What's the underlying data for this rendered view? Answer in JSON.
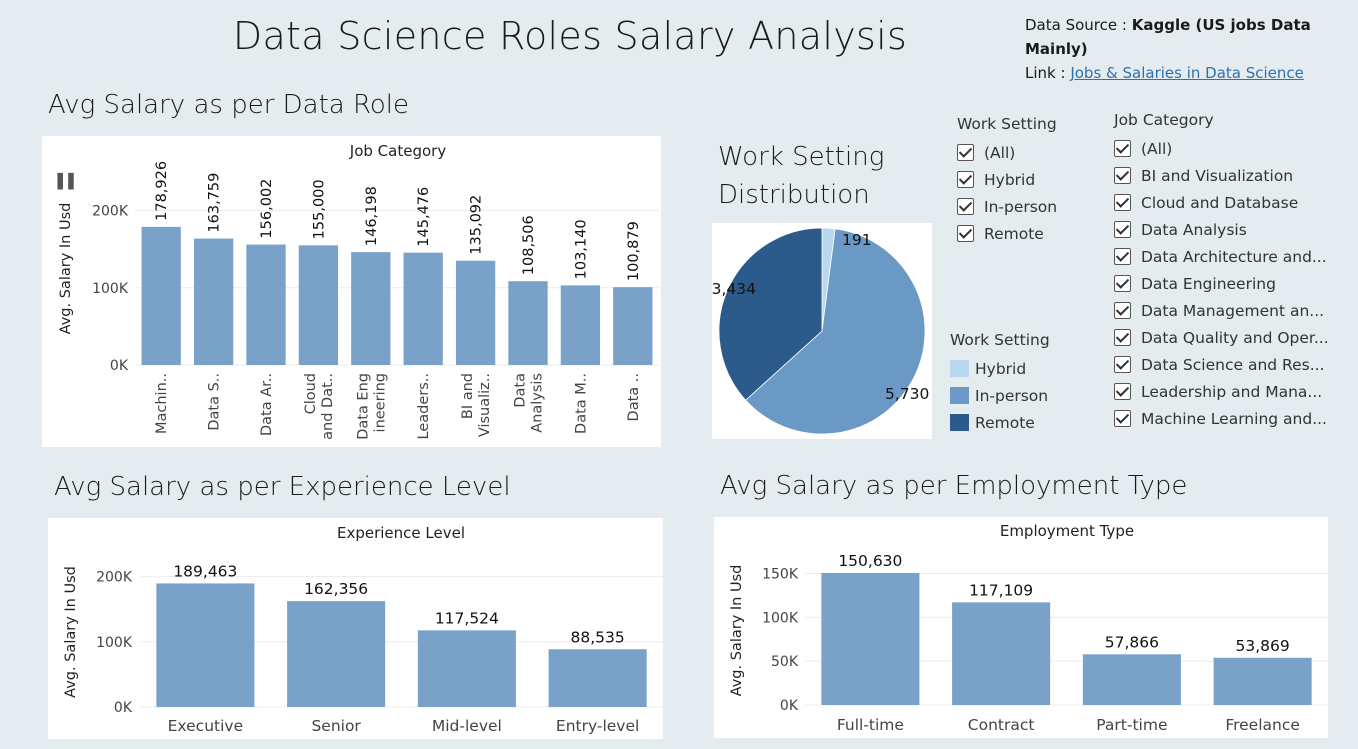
{
  "header": {
    "title": "Data Science Roles Salary Analysis",
    "source_label": "Data Source :",
    "source_value": "Kaggle  (US jobs Data Mainly)",
    "link_label": "Link :",
    "link_text": "Jobs & Salaries in Data Science"
  },
  "sections": {
    "role_title": "Avg Salary as per Data Role",
    "work_setting_title_line1": "Work Setting",
    "work_setting_title_line2": "Distribution",
    "experience_title": "Avg Salary as per Experience Level",
    "employment_title": "Avg Salary as per Employment Type"
  },
  "filters": {
    "work_setting": {
      "title": "Work Setting",
      "options": [
        "(All)",
        "Hybrid",
        "In-person",
        "Remote"
      ]
    },
    "job_category": {
      "title": "Job Category",
      "options": [
        "(All)",
        "BI and Visualization",
        "Cloud and Database",
        "Data Analysis",
        "Data Architecture and...",
        "Data Engineering",
        "Data Management an...",
        "Data Quality and Oper...",
        "Data Science and Res...",
        "Leadership and Mana...",
        "Machine Learning and..."
      ]
    }
  },
  "pie_legend": {
    "title": "Work Setting",
    "items": [
      "Hybrid",
      "In-person",
      "Remote"
    ]
  },
  "colors": {
    "bar": "#7aa2c9",
    "hybrid": "#b9d8ef",
    "in_person": "#6a99c6",
    "remote": "#2c5a8a"
  },
  "chart_data": [
    {
      "type": "bar",
      "id": "role",
      "title": "Job Category",
      "ylabel": "Avg. Salary In Usd",
      "ylim": [
        0,
        250000
      ],
      "yticks": [
        0,
        100000,
        200000
      ],
      "ytick_labels": [
        "0K",
        "100K",
        "200K"
      ],
      "categories": [
        [
          "Machin.."
        ],
        [
          "Data S.."
        ],
        [
          "Data Ar.."
        ],
        [
          "Cloud",
          "and Dat.."
        ],
        [
          "Data Eng",
          "ineering"
        ],
        [
          "Leaders.."
        ],
        [
          "BI and",
          "Visualiz.."
        ],
        [
          "Data",
          "Analysis"
        ],
        [
          "Data M.."
        ],
        [
          "Data .."
        ]
      ],
      "values": [
        178926,
        163759,
        156002,
        155000,
        146198,
        145476,
        135092,
        108506,
        103140,
        100879
      ],
      "value_labels": [
        "178,926",
        "163,759",
        "156,002",
        "155,000",
        "146,198",
        "145,476",
        "135,092",
        "108,506",
        "103,140",
        "100,879"
      ]
    },
    {
      "type": "pie",
      "id": "work_setting",
      "title": "Work Setting Distribution",
      "categories": [
        "Hybrid",
        "In-person",
        "Remote"
      ],
      "values": [
        191,
        5730,
        3434
      ],
      "value_labels": [
        "191",
        "5,730",
        "3,434"
      ]
    },
    {
      "type": "bar",
      "id": "experience",
      "title": "Experience Level",
      "ylabel": "Avg. Salary In Usd",
      "ylim": [
        0,
        230000
      ],
      "yticks": [
        0,
        100000,
        200000
      ],
      "ytick_labels": [
        "0K",
        "100K",
        "200K"
      ],
      "categories": [
        "Executive",
        "Senior",
        "Mid-level",
        "Entry-level"
      ],
      "values": [
        189463,
        162356,
        117524,
        88535
      ],
      "value_labels": [
        "189,463",
        "162,356",
        "117,524",
        "88,535"
      ]
    },
    {
      "type": "bar",
      "id": "employment",
      "title": "Employment Type",
      "ylabel": "Avg. Salary In Usd",
      "ylim": [
        0,
        170000
      ],
      "yticks": [
        0,
        50000,
        100000,
        150000
      ],
      "ytick_labels": [
        "0K",
        "50K",
        "100K",
        "150K"
      ],
      "categories": [
        "Full-time",
        "Contract",
        "Part-time",
        "Freelance"
      ],
      "values": [
        150630,
        117109,
        57866,
        53869
      ],
      "value_labels": [
        "150,630",
        "117,109",
        "57,866",
        "53,869"
      ]
    }
  ]
}
